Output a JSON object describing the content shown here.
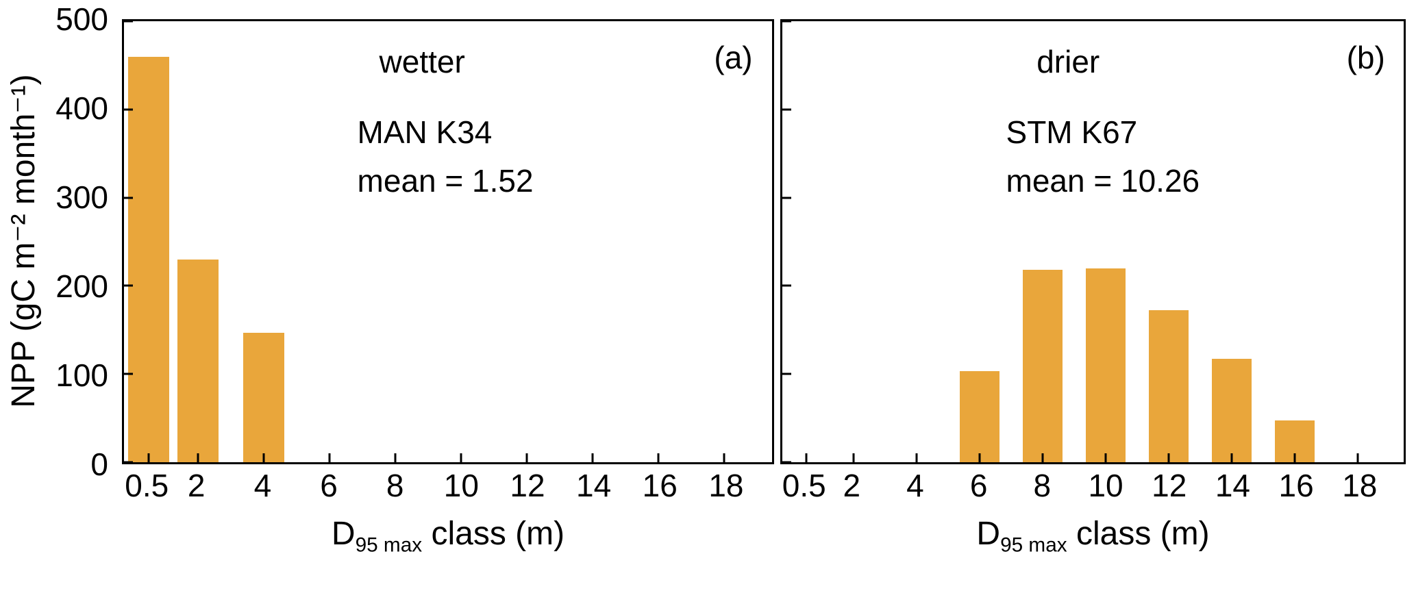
{
  "chart_data": {
    "type": "bar",
    "ylabel": "NPP (gC m⁻² month⁻¹)",
    "ylim": [
      0,
      500
    ],
    "yticks": [
      0,
      100,
      200,
      300,
      400,
      500
    ],
    "xlabel": {
      "base": "D",
      "sub": "95 max",
      "rest": " class (m)"
    },
    "categories": [
      0.5,
      2,
      4,
      6,
      8,
      10,
      12,
      14,
      16,
      18
    ],
    "x_axis_range": [
      -0.25,
      19.45
    ],
    "bar_width_units": 1.25,
    "bar_color": "#E9A63B",
    "grid": false,
    "legend": "none",
    "panels": [
      {
        "label": "(a)",
        "condition": "wetter",
        "site": "MAN K34",
        "mean_text": "mean = 1.52",
        "values": [
          460,
          230,
          147,
          0,
          0,
          0,
          0,
          0,
          0,
          0
        ]
      },
      {
        "label": "(b)",
        "condition": "drier",
        "site": "STM K67",
        "mean_text": "mean = 10.26",
        "values": [
          0,
          0,
          0,
          103,
          218,
          220,
          172,
          117,
          47,
          0
        ]
      }
    ]
  }
}
